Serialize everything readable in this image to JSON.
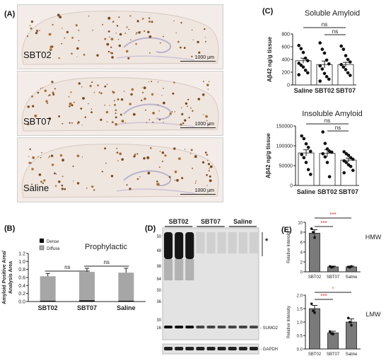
{
  "panels": {
    "A": {
      "label": "(A)",
      "images": [
        {
          "name": "SBT02",
          "scalebar": "1000 µm"
        },
        {
          "name": "SBT07",
          "scalebar": "1000 µm"
        },
        {
          "name": "Saline",
          "scalebar": "1000 µm"
        }
      ]
    },
    "B": {
      "label": "(B)",
      "title": "Prophylactic",
      "ylabel_line1": "Amyloid Positive Area/",
      "ylabel_line2": "Analysis Area",
      "legend": [
        "Dense",
        "Diffuse"
      ],
      "sig": [
        "ns",
        "ns"
      ],
      "colors": {
        "dense": "#000000",
        "diffuse": "#a6a6a6"
      }
    },
    "C": {
      "label": "(C)",
      "sig": [
        "ns",
        "ns",
        "ns",
        "ns"
      ]
    },
    "D": {
      "label": "(D)",
      "groups": [
        "SBT02",
        "SBT07",
        "Saline"
      ],
      "mw_markers": [
        "250",
        "148",
        "98",
        "64",
        "50",
        "36",
        "30",
        "16"
      ],
      "star": "*",
      "sumo_label": "- SUMO2",
      "gapdh_label": "- GAPDH"
    },
    "E": {
      "label": "(E)",
      "sig_colors": {
        "red": "#e03030",
        "orange": "#e07a20"
      }
    }
  },
  "chart_data": [
    {
      "id": "B",
      "type": "bar",
      "title": "Prophylactic",
      "categories": [
        "SBT02",
        "SBT07",
        "Saline"
      ],
      "series": [
        {
          "name": "Dense",
          "values": [
            0.02,
            0.03,
            0.02
          ]
        },
        {
          "name": "Diffuse",
          "values": [
            0.61,
            0.71,
            0.7
          ]
        }
      ],
      "errors": [
        0.07,
        0.09,
        0.11
      ],
      "ylabel": "Amyloid Positive Area/ Analysis Area",
      "ylim": [
        0,
        1.2
      ],
      "yticks": [
        "0.0",
        "0.2",
        "0.4",
        "0.6",
        "0.8",
        "1.0",
        "1.2"
      ]
    },
    {
      "id": "C-top",
      "type": "bar",
      "title": "Soluble Amyloid",
      "categories": [
        "Saline",
        "SBT02",
        "SBT07"
      ],
      "values": [
        380,
        320,
        320
      ],
      "errors": [
        40,
        55,
        35
      ],
      "points": [
        [
          620,
          570,
          510,
          420,
          380,
          340,
          310,
          280,
          230,
          190,
          160
        ],
        [
          660,
          560,
          500,
          390,
          330,
          300,
          250,
          180,
          130,
          90,
          60
        ],
        [
          610,
          560,
          460,
          400,
          360,
          320,
          280,
          240,
          190,
          150
        ]
      ],
      "ylabel": "Aβ42 ng/g tissue",
      "ylim": [
        0,
        800
      ],
      "yticks": [
        "0",
        "200",
        "400",
        "600",
        "800"
      ]
    },
    {
      "id": "C-bottom",
      "type": "bar",
      "title": "Insoluble Amyloid",
      "categories": [
        "Saline",
        "SBT02",
        "SBT07"
      ],
      "values": [
        82000,
        81000,
        64000
      ],
      "errors": [
        8000,
        9000,
        5000
      ],
      "points": [
        [
          125000,
          118000,
          105000,
          96000,
          86000,
          78000,
          70000,
          58000,
          40000,
          28000
        ],
        [
          135000,
          106000,
          92000,
          86000,
          84000,
          80000,
          72000,
          58000,
          22000
        ],
        [
          85000,
          80000,
          76000,
          70000,
          66000,
          62000,
          58000,
          52000,
          48000,
          38000,
          32000
        ]
      ],
      "ylabel": "Aβ42 ng/g tissue",
      "ylim": [
        0,
        150000
      ],
      "yticks": [
        "0",
        "50000",
        "100000",
        "150000"
      ]
    },
    {
      "id": "E-top",
      "type": "bar",
      "title": "HMW",
      "categories": [
        "SBT02",
        "SBT07",
        "Saline"
      ],
      "values": [
        7.8,
        1.0,
        1.0
      ],
      "errors": [
        0.7,
        0.15,
        0.15
      ],
      "points": [
        [
          8.7,
          8.0,
          6.9
        ],
        [
          1.1,
          0.9,
          1.0
        ],
        [
          1.0,
          0.9,
          1.1
        ]
      ],
      "ylabel": "Relative Intensity",
      "ylim": [
        0,
        10
      ],
      "yticks": [
        "0",
        "2",
        "4",
        "6",
        "8",
        "10"
      ],
      "sig": [
        "***",
        "***"
      ]
    },
    {
      "id": "E-bottom",
      "type": "bar",
      "title": "LMW",
      "categories": [
        "SBT02",
        "SBT07",
        "Saline"
      ],
      "values": [
        1.5,
        0.6,
        1.0
      ],
      "errors": [
        0.12,
        0.06,
        0.12
      ],
      "points": [
        [
          1.68,
          1.42,
          1.35
        ],
        [
          0.65,
          0.58,
          0.55
        ],
        [
          1.15,
          1.0,
          0.88
        ]
      ],
      "ylabel": "Relative Intensity",
      "ylim": [
        0,
        2.0
      ],
      "yticks": [
        "0.0",
        "0.5",
        "1.0",
        "1.5",
        "2.0"
      ],
      "sig": [
        "***",
        "*"
      ]
    }
  ]
}
